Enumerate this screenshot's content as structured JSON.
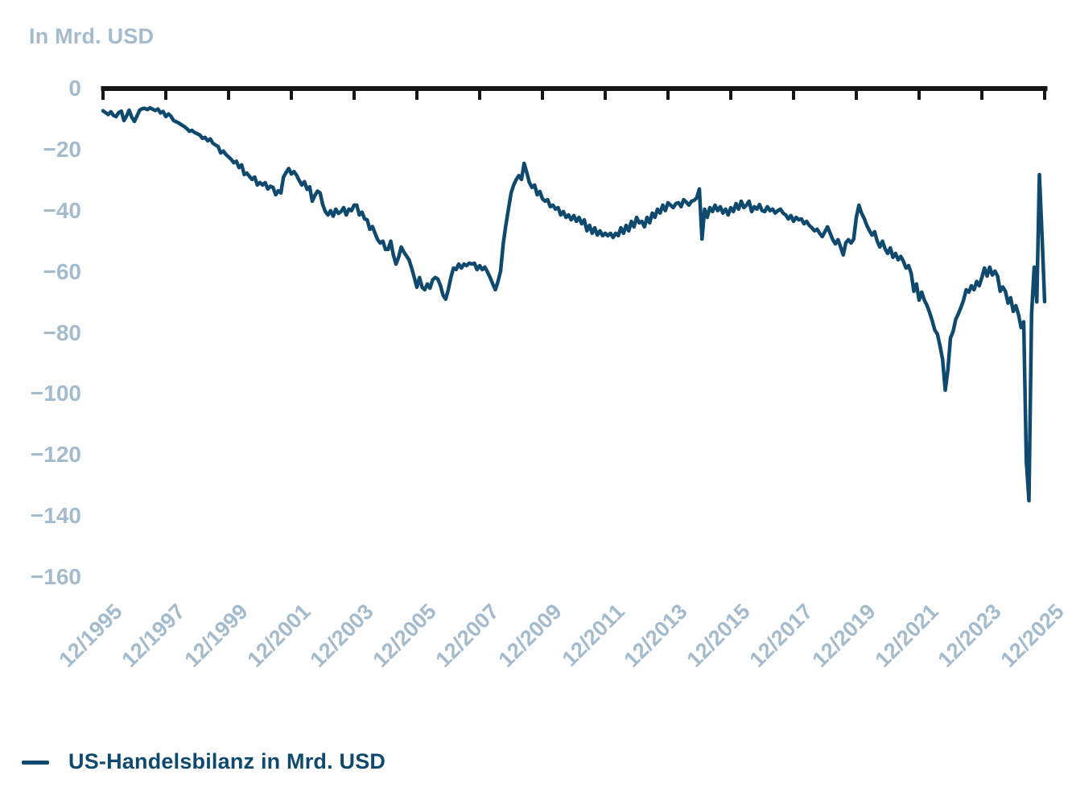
{
  "colors": {
    "line": "#0f4a6e",
    "axis": "#161616",
    "tick_label": "#a3bbcd",
    "background": "#ffffff"
  },
  "chart_data": {
    "type": "line",
    "title": "In Mrd. USD",
    "xlabel": "",
    "ylabel": "In Mrd. USD",
    "grid": false,
    "axis_position": "top",
    "legend_position": "bottom-left",
    "legend_label": "US-Handelsbilanz in Mrd. USD",
    "ylim": [
      -170,
      0
    ],
    "y_tick_values": [
      0,
      -20,
      -40,
      -60,
      -80,
      -100,
      -120,
      -140,
      -160
    ],
    "y_tick_labels": [
      "0",
      "−20",
      "−40",
      "−60",
      "−80",
      "−100",
      "−120",
      "−140",
      "−160"
    ],
    "x_tick_labels": [
      "12/1995",
      "12/1997",
      "12/1999",
      "12/2001",
      "12/2003",
      "12/2005",
      "12/2007",
      "12/2009",
      "12/2011",
      "12/2013",
      "12/2015",
      "12/2017",
      "12/2019",
      "12/2021",
      "12/2023",
      "12/2025"
    ],
    "series": [
      {
        "name": "US-Handelsbilanz in Mrd. USD",
        "color": "#0f4a6e",
        "start": "12/1995",
        "end": "12/2025",
        "interval": "monthly",
        "values": [
          -7.3,
          -7.9,
          -8.5,
          -7.6,
          -8.8,
          -9.2,
          -7.9,
          -7.4,
          -10.5,
          -9.0,
          -7.1,
          -9.4,
          -10.8,
          -9.0,
          -7.1,
          -6.6,
          -6.5,
          -6.9,
          -6.3,
          -6.8,
          -7.2,
          -6.7,
          -8.0,
          -7.5,
          -9.2,
          -8.3,
          -9.1,
          -10.5,
          -10.9,
          -11.3,
          -11.9,
          -12.4,
          -13.1,
          -14.0,
          -13.7,
          -14.4,
          -14.8,
          -15.2,
          -16.3,
          -16.0,
          -17.1,
          -16.5,
          -17.9,
          -18.5,
          -19.0,
          -21.1,
          -20.5,
          -21.6,
          -22.4,
          -23.2,
          -24.3,
          -23.8,
          -25.9,
          -25.0,
          -28.2,
          -27.7,
          -28.8,
          -29.8,
          -29.0,
          -31.6,
          -30.8,
          -31.6,
          -30.8,
          -32.9,
          -32.0,
          -32.4,
          -34.8,
          -33.5,
          -34.2,
          -29.0,
          -27.5,
          -26.2,
          -28.0,
          -27.2,
          -28.4,
          -30.1,
          -31.6,
          -30.5,
          -33.0,
          -32.2,
          -36.9,
          -35.0,
          -33.6,
          -34.2,
          -38.0,
          -40.3,
          -41.4,
          -40.0,
          -41.8,
          -39.5,
          -40.9,
          -40.3,
          -39.0,
          -41.4,
          -39.5,
          -40.0,
          -38.2,
          -38.2,
          -41.4,
          -40.5,
          -42.7,
          -43.0,
          -46.1,
          -45.2,
          -47.4,
          -49.5,
          -50.6,
          -50.0,
          -52.7,
          -52.7,
          -50.0,
          -54.5,
          -57.5,
          -55.3,
          -51.9,
          -53.5,
          -54.8,
          -56.1,
          -58.8,
          -61.9,
          -65.1,
          -61.9,
          -65.1,
          -65.9,
          -64.0,
          -65.4,
          -62.7,
          -61.9,
          -62.4,
          -64.5,
          -67.7,
          -69.0,
          -65.9,
          -61.9,
          -58.8,
          -59.3,
          -57.5,
          -58.8,
          -57.5,
          -58.0,
          -57.2,
          -57.5,
          -57.2,
          -59.3,
          -58.0,
          -59.3,
          -58.5,
          -60.1,
          -61.9,
          -64.0,
          -65.9,
          -63.2,
          -59.8,
          -50.9,
          -44.8,
          -39.5,
          -34.3,
          -31.6,
          -29.8,
          -28.5,
          -29.8,
          -24.5,
          -27.5,
          -30.8,
          -32.4,
          -31.6,
          -34.8,
          -33.7,
          -36.1,
          -36.9,
          -36.4,
          -38.7,
          -38.2,
          -39.5,
          -39.0,
          -41.4,
          -40.3,
          -42.2,
          -41.4,
          -43.0,
          -41.6,
          -43.5,
          -42.2,
          -44.3,
          -43.0,
          -46.6,
          -44.8,
          -47.4,
          -45.6,
          -48.0,
          -46.6,
          -48.2,
          -47.4,
          -48.2,
          -47.4,
          -48.8,
          -47.4,
          -48.2,
          -45.6,
          -47.4,
          -44.8,
          -46.6,
          -43.5,
          -45.3,
          -42.2,
          -44.0,
          -43.5,
          -45.3,
          -42.2,
          -44.0,
          -40.8,
          -42.2,
          -39.5,
          -40.8,
          -38.2,
          -40.0,
          -37.4,
          -38.2,
          -39.0,
          -37.7,
          -37.4,
          -38.7,
          -36.4,
          -37.2,
          -38.2,
          -36.9,
          -36.6,
          -35.8,
          -32.9,
          -49.3,
          -39.5,
          -42.2,
          -39.0,
          -40.3,
          -38.2,
          -40.0,
          -38.7,
          -40.8,
          -39.5,
          -41.4,
          -39.0,
          -40.3,
          -37.7,
          -39.5,
          -36.9,
          -39.0,
          -38.2,
          -36.9,
          -40.3,
          -38.7,
          -39.5,
          -38.0,
          -40.0,
          -40.3,
          -38.7,
          -40.0,
          -39.5,
          -40.8,
          -40.0,
          -39.5,
          -40.8,
          -41.4,
          -42.7,
          -41.6,
          -43.5,
          -42.2,
          -43.0,
          -42.7,
          -44.3,
          -43.5,
          -44.8,
          -45.6,
          -46.6,
          -46.1,
          -47.4,
          -48.5,
          -46.9,
          -45.3,
          -47.4,
          -49.5,
          -50.9,
          -49.5,
          -51.9,
          -54.5,
          -50.5,
          -49.5,
          -50.6,
          -49.3,
          -42.2,
          -38.2,
          -40.8,
          -42.5,
          -44.8,
          -46.5,
          -48.0,
          -46.9,
          -50.0,
          -51.9,
          -50.0,
          -52.5,
          -54.0,
          -52.2,
          -55.3,
          -54.0,
          -56.1,
          -55.0,
          -56.6,
          -58.8,
          -58.0,
          -60.6,
          -66.4,
          -64.0,
          -69.3,
          -66.7,
          -69.3,
          -71.0,
          -73.3,
          -76.0,
          -79.1,
          -80.4,
          -84.3,
          -88.8,
          -98.8,
          -92.2,
          -81.7,
          -79.6,
          -75.6,
          -73.8,
          -71.7,
          -69.3,
          -65.9,
          -66.7,
          -64.6,
          -65.9,
          -63.2,
          -64.6,
          -61.9,
          -58.8,
          -61.4,
          -58.5,
          -61.1,
          -59.8,
          -61.4,
          -66.4,
          -65.0,
          -66.4,
          -70.3,
          -68.5,
          -73.0,
          -71.1,
          -74.0,
          -78.3,
          -76.4,
          -122.0,
          -135.0,
          -74.0,
          -58.5,
          -69.9,
          -28.2,
          -48.0,
          -69.8
        ]
      }
    ]
  }
}
